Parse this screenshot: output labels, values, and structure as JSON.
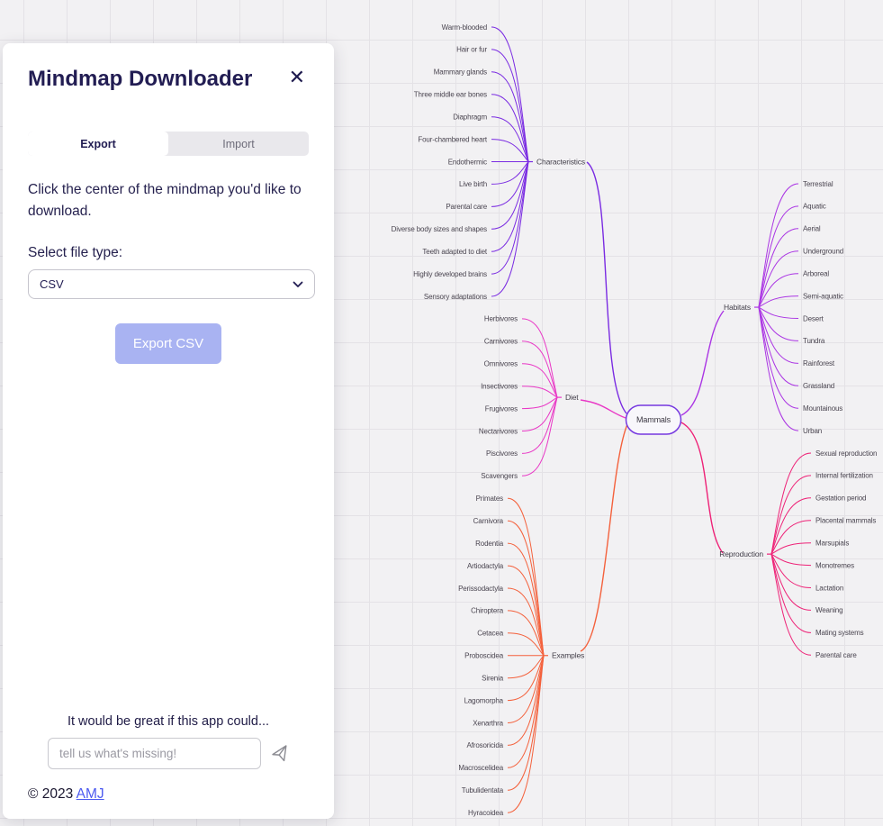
{
  "panel": {
    "title": "Mindmap Downloader",
    "close_glyph": "✕",
    "tabs": {
      "export": "Export",
      "import": "Import"
    },
    "instruction": "Click the center of the mindmap you'd like to download.",
    "file_type_label": "Select file type:",
    "file_type_value": "CSV",
    "export_button_label": "Export CSV",
    "feedback_prompt": "It would be great if this app could...",
    "feedback_placeholder": "tell us what's missing!",
    "copyright_text": "© 2023 ",
    "copyright_link": "AMJ"
  },
  "colors": {
    "accent_button": "#a9b3f2",
    "root_border": "#7638e0",
    "characteristics": "#7a2be2",
    "diet": "#e938c6",
    "examples": "#f4613c",
    "habitats": "#ab36e4",
    "reproduction": "#ee2277"
  },
  "mindmap": {
    "root": {
      "label": "Mammals"
    },
    "branches": [
      {
        "label": "Characteristics",
        "side": "left",
        "color_key": "characteristics",
        "children": [
          "Warm-blooded",
          "Hair or fur",
          "Mammary glands",
          "Three middle ear bones",
          "Diaphragm",
          "Four-chambered heart",
          "Endothermic",
          "Live birth",
          "Parental care",
          "Diverse body sizes and shapes",
          "Teeth adapted to diet",
          "Highly developed brains",
          "Sensory adaptations"
        ]
      },
      {
        "label": "Diet",
        "side": "left",
        "color_key": "diet",
        "children": [
          "Herbivores",
          "Carnivores",
          "Omnivores",
          "Insectivores",
          "Frugivores",
          "Nectarivores",
          "Piscivores",
          "Scavengers"
        ]
      },
      {
        "label": "Examples",
        "side": "left",
        "color_key": "examples",
        "children": [
          "Primates",
          "Carnivora",
          "Rodentia",
          "Artiodactyla",
          "Perissodactyla",
          "Chiroptera",
          "Cetacea",
          "Proboscidea",
          "Sirenia",
          "Lagomorpha",
          "Xenarthra",
          "Afrosoricida",
          "Macroscelidea",
          "Tubulidentata",
          "Hyracoidea"
        ]
      },
      {
        "label": "Habitats",
        "side": "right",
        "color_key": "habitats",
        "children": [
          "Terrestrial",
          "Aquatic",
          "Aerial",
          "Underground",
          "Arboreal",
          "Semi-aquatic",
          "Desert",
          "Tundra",
          "Rainforest",
          "Grassland",
          "Mountainous",
          "Urban"
        ]
      },
      {
        "label": "Reproduction",
        "side": "right",
        "color_key": "reproduction",
        "children": [
          "Sexual reproduction",
          "Internal fertilization",
          "Gestation period",
          "Placental mammals",
          "Marsupials",
          "Monotremes",
          "Lactation",
          "Weaning",
          "Mating systems",
          "Parental care"
        ]
      }
    ]
  }
}
